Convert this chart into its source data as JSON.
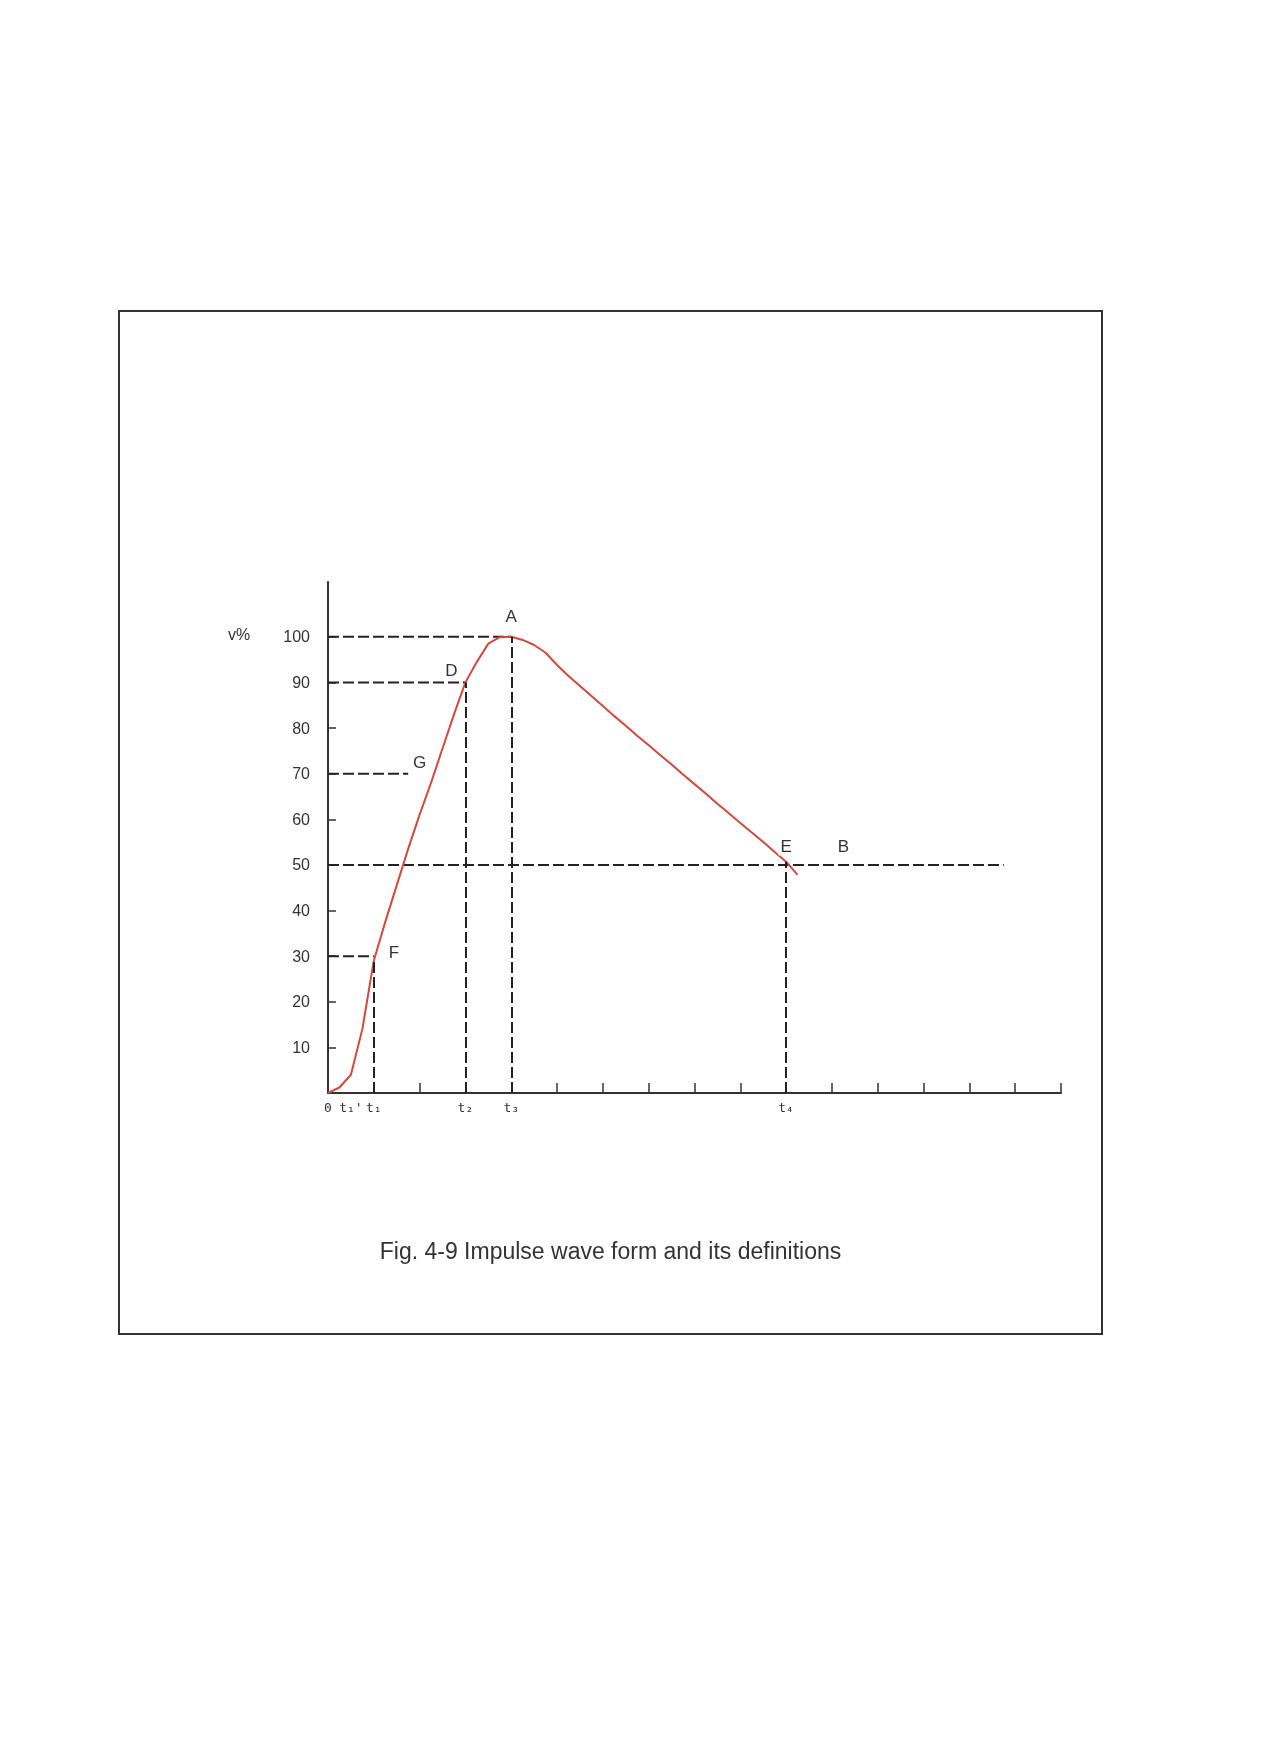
{
  "chart_data": {
    "type": "line",
    "ylabel": "v%",
    "categories": [
      "0",
      null,
      "t₁'",
      null,
      "t₁",
      null,
      null,
      null,
      null,
      null,
      null,
      null,
      "t₂",
      null,
      null,
      null,
      "t₃",
      null,
      null,
      null,
      null,
      null,
      null,
      null,
      null,
      null,
      null,
      null,
      null,
      null,
      null,
      null,
      null,
      null,
      null,
      null,
      null,
      null,
      null,
      null,
      "t₄",
      null,
      null,
      null,
      null,
      null,
      null,
      null,
      null,
      null,
      null,
      null,
      null,
      null,
      null,
      null,
      null,
      null,
      null,
      null,
      null,
      null,
      null,
      null,
      null
    ],
    "ylim": [
      0,
      112
    ],
    "yticks": [
      10,
      20,
      30,
      40,
      50,
      60,
      70,
      80,
      90,
      100
    ],
    "grid": false,
    "marker": "none",
    "series": [
      {
        "color": "#d4483e",
        "line_style": "solid",
        "values": [
          0,
          1.2,
          4,
          14,
          29,
          37.5,
          45.5,
          53.5,
          61,
          68,
          75.5,
          83,
          90,
          94.5,
          98.5,
          99.9,
          100,
          99.3,
          98.2,
          96.5,
          93.8,
          91.4,
          89.2,
          87,
          84.8,
          82.6,
          80.5,
          78.3,
          76.2,
          74.1,
          72,
          69.8,
          67.7,
          65.6,
          63.4,
          61.3,
          59.2,
          57.1,
          55,
          52.8,
          50.7,
          47.8,
          null,
          null,
          null,
          null,
          null,
          null,
          null,
          null,
          null,
          null,
          null,
          null,
          null,
          null,
          null,
          null,
          null,
          null,
          null,
          null,
          null,
          null,
          null
        ]
      },
      {
        "color": "#222222",
        "line_style": "dashed",
        "values": [
          100,
          100,
          100,
          100,
          100,
          100,
          100,
          100,
          100,
          100,
          100,
          100,
          100,
          100,
          100,
          100,
          100,
          null,
          null,
          null,
          null,
          null,
          null,
          null,
          null,
          null,
          null,
          null,
          null,
          null,
          null,
          null,
          null,
          null,
          null,
          null,
          null,
          null,
          null,
          null,
          null,
          null,
          null,
          null,
          null,
          null,
          null,
          null,
          null,
          null,
          null,
          null,
          null,
          null,
          null,
          null,
          null,
          null,
          null,
          null,
          null,
          null,
          null,
          null,
          null
        ]
      },
      {
        "color": "#222222",
        "line_style": "dashed",
        "values": [
          90,
          90,
          90,
          90,
          90,
          90,
          90,
          90,
          90,
          90,
          90,
          90,
          90,
          null,
          null,
          null,
          null,
          null,
          null,
          null,
          null,
          null,
          null,
          null,
          null,
          null,
          null,
          null,
          null,
          null,
          null,
          null,
          null,
          null,
          null,
          null,
          null,
          null,
          null,
          null,
          null,
          null,
          null,
          null,
          null,
          null,
          null,
          null,
          null,
          null,
          null,
          null,
          null,
          null,
          null,
          null,
          null,
          null,
          null,
          null,
          null,
          null,
          null,
          null,
          null
        ]
      },
      {
        "color": "#222222",
        "line_style": "dashed",
        "values": [
          70,
          70,
          70,
          70,
          70,
          70,
          70,
          70,
          null,
          null,
          null,
          null,
          null,
          null,
          null,
          null,
          null,
          null,
          null,
          null,
          null,
          null,
          null,
          null,
          null,
          null,
          null,
          null,
          null,
          null,
          null,
          null,
          null,
          null,
          null,
          null,
          null,
          null,
          null,
          null,
          null,
          null,
          null,
          null,
          null,
          null,
          null,
          null,
          null,
          null,
          null,
          null,
          null,
          null,
          null,
          null,
          null,
          null,
          null,
          null,
          null,
          null,
          null,
          null,
          null
        ]
      },
      {
        "color": "#222222",
        "line_style": "dashed",
        "values": [
          50,
          50,
          50,
          50,
          50,
          50,
          50,
          50,
          50,
          50,
          50,
          50,
          50,
          50,
          50,
          50,
          50,
          50,
          50,
          50,
          50,
          50,
          50,
          50,
          50,
          50,
          50,
          50,
          50,
          50,
          50,
          50,
          50,
          50,
          50,
          50,
          50,
          50,
          50,
          50,
          50,
          50,
          50,
          50,
          50,
          50,
          50,
          50,
          50,
          50,
          50,
          50,
          50,
          50,
          50,
          50,
          50,
          50,
          50,
          50,
          null,
          null,
          null,
          null,
          null
        ]
      },
      {
        "color": "#222222",
        "line_style": "dashed",
        "values": [
          30,
          30,
          30,
          30,
          30,
          null,
          null,
          null,
          null,
          null,
          null,
          null,
          null,
          null,
          null,
          null,
          null,
          null,
          null,
          null,
          null,
          null,
          null,
          null,
          null,
          null,
          null,
          null,
          null,
          null,
          null,
          null,
          null,
          null,
          null,
          null,
          null,
          null,
          null,
          null,
          null,
          null,
          null,
          null,
          null,
          null,
          null,
          null,
          null,
          null,
          null,
          null,
          null,
          null,
          null,
          null,
          null,
          null,
          null,
          null,
          null,
          null,
          null,
          null,
          null
        ]
      }
    ],
    "ref_lines": [
      {
        "axis": "x",
        "value": "t₁",
        "color": "#222222",
        "line_style": "dashed"
      },
      {
        "axis": "x",
        "value": "t₂",
        "color": "#222222",
        "line_style": "dashed"
      },
      {
        "axis": "x",
        "value": "t₃",
        "color": "#222222",
        "line_style": "dashed"
      },
      {
        "axis": "x",
        "value": "t₄",
        "color": "#222222",
        "line_style": "dashed"
      }
    ],
    "annotations": [
      {
        "text": "A",
        "x": "t₃",
        "y": 100
      },
      {
        "text": "D",
        "x": "t₂",
        "y": 90
      },
      {
        "text": "F",
        "x": "t₁",
        "y": 30
      },
      {
        "text": "E",
        "x": "t₄",
        "y": 50
      },
      "G",
      "B",
      "Fig. 4-9 Impulse wave form and its definitions"
    ]
  }
}
